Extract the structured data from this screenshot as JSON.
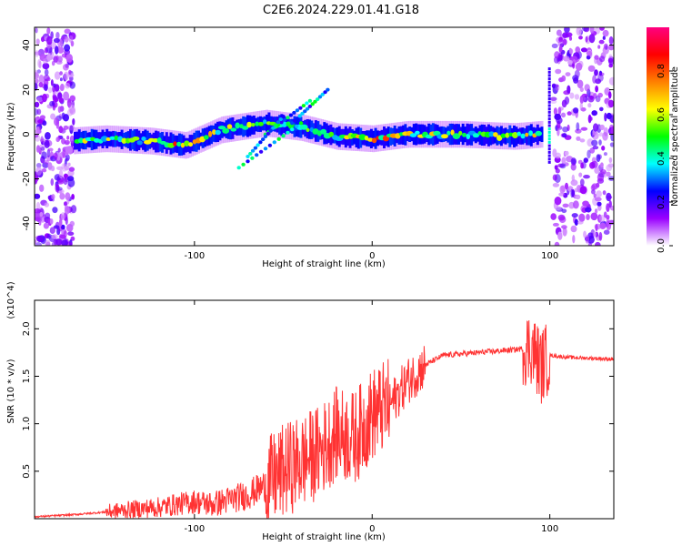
{
  "figure": {
    "title": "C2E6.2024.229.01.41.G18"
  },
  "chart_data": [
    {
      "type": "heatmap",
      "title": "C2E6.2024.229.01.41.G18",
      "xlabel": "Height of straight line (km)",
      "ylabel": "Frequency (Hz)",
      "xlim": [
        -190,
        136
      ],
      "ylim": [
        -50,
        48
      ],
      "x_ticks": [
        -100,
        0,
        100
      ],
      "y_ticks": [
        -40,
        -20,
        0,
        20,
        40
      ],
      "colorbar": {
        "label": "Normalized spectral amplitude",
        "range": [
          0.0,
          1.0
        ],
        "ticks": [
          "0.0",
          "0.2",
          "0.4",
          "0.6",
          "0.8"
        ],
        "colors": [
          "#ffffff",
          "#9a00ff",
          "#0000ff",
          "#00ffff",
          "#00ff00",
          "#ffff00",
          "#ff8000",
          "#ff0000",
          "#ff0080"
        ]
      },
      "ridge": [
        {
          "x": -170,
          "freq": -3,
          "amp": 0.5
        },
        {
          "x": -150,
          "freq": -2,
          "amp": 0.55
        },
        {
          "x": -125,
          "freq": -3,
          "amp": 0.5
        },
        {
          "x": -105,
          "freq": -5,
          "amp": 0.75
        },
        {
          "x": -85,
          "freq": 2,
          "amp": 0.55
        },
        {
          "x": -60,
          "freq": 5,
          "amp": 0.45
        },
        {
          "x": -40,
          "freq": 3,
          "amp": 0.45
        },
        {
          "x": -20,
          "freq": -1,
          "amp": 0.5
        },
        {
          "x": 0,
          "freq": -2,
          "amp": 0.7
        },
        {
          "x": 20,
          "freq": 0,
          "amp": 0.6
        },
        {
          "x": 50,
          "freq": 0,
          "amp": 0.5
        },
        {
          "x": 80,
          "freq": -1,
          "amp": 0.55
        },
        {
          "x": 95,
          "freq": 0,
          "amp": 0.6
        }
      ],
      "noise_regions": [
        [
          -190,
          -168
        ],
        [
          102,
          136
        ]
      ]
    },
    {
      "type": "line",
      "xlabel": "Height of straight line (km)",
      "ylabel": "SNR (10 * v/v)",
      "y_multiplier": "(x10^4)",
      "xlim": [
        -190,
        136
      ],
      "ylim": [
        0,
        2.3
      ],
      "x_ticks": [
        -100,
        0,
        100
      ],
      "y_ticks": [
        "0.5",
        "1.0",
        "1.5",
        "2.0"
      ],
      "color": "#ff3333",
      "x": [
        -190,
        -170,
        -150,
        -140,
        -120,
        -100,
        -90,
        -80,
        -70,
        -60,
        -50,
        -40,
        -30,
        -20,
        -10,
        0,
        10,
        20,
        30,
        40,
        60,
        80,
        90,
        95,
        100,
        110,
        136
      ],
      "y": [
        0.02,
        0.04,
        0.07,
        0.09,
        0.12,
        0.18,
        0.15,
        0.2,
        0.25,
        0.35,
        0.5,
        0.6,
        0.7,
        0.9,
        0.85,
        1.1,
        1.2,
        1.45,
        1.62,
        1.72,
        1.75,
        1.78,
        1.8,
        1.6,
        1.72,
        1.7,
        1.68
      ]
    }
  ]
}
